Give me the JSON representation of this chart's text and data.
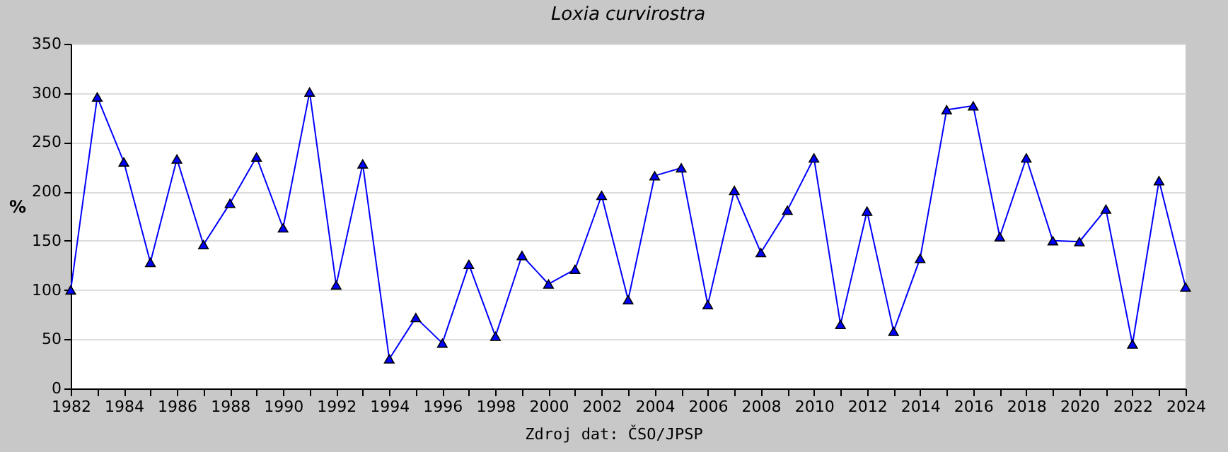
{
  "chart_data": {
    "type": "line",
    "title": "Loxia curvirostra",
    "ylabel": "%",
    "annotations": [
      "Zdroj dat: ČSO/JPSP"
    ],
    "x": [
      1982,
      1983,
      1984,
      1985,
      1986,
      1987,
      1988,
      1989,
      1990,
      1991,
      1992,
      1993,
      1994,
      1995,
      1996,
      1997,
      1998,
      1999,
      2000,
      2001,
      2002,
      2003,
      2004,
      2005,
      2006,
      2007,
      2008,
      2009,
      2010,
      2011,
      2012,
      2013,
      2014,
      2015,
      2016,
      2017,
      2018,
      2019,
      2020,
      2021,
      2022,
      2023,
      2024
    ],
    "series": [
      {
        "color": "#0000ff",
        "values": [
          100,
          296,
          230,
          128,
          233,
          146,
          188,
          235,
          163,
          301,
          105,
          228,
          30,
          72,
          46,
          126,
          53,
          135,
          106,
          121,
          196,
          90,
          216,
          224,
          85,
          201,
          138,
          181,
          234,
          65,
          180,
          58,
          132,
          283,
          287,
          154,
          234,
          150,
          149,
          182,
          45,
          211,
          103
        ]
      }
    ],
    "xlim": [
      1982,
      2024
    ],
    "xticks": [
      1982,
      {
        "value": 1983,
        "label": null
      },
      1984,
      {
        "value": 1985,
        "label": null
      },
      1986,
      {
        "value": 1987,
        "label": null
      },
      1988,
      {
        "value": 1989,
        "label": null
      },
      1990,
      {
        "value": 1991,
        "label": null
      },
      1992,
      {
        "value": 1993,
        "label": null
      },
      1994,
      {
        "value": 1995,
        "label": null
      },
      1996,
      {
        "value": 1997,
        "label": null
      },
      1998,
      {
        "value": 1999,
        "label": null
      },
      2000,
      {
        "value": 2001,
        "label": null
      },
      2002,
      {
        "value": 2003,
        "label": null
      },
      2004,
      {
        "value": 2005,
        "label": null
      },
      2006,
      {
        "value": 2007,
        "label": null
      },
      2008,
      {
        "value": 2009,
        "label": null
      },
      2010,
      {
        "value": 2011,
        "label": null
      },
      2012,
      {
        "value": 2013,
        "label": null
      },
      2014,
      {
        "value": 2015,
        "label": null
      },
      2016,
      {
        "value": 2017,
        "label": null
      },
      2018,
      {
        "value": 2019,
        "label": null
      },
      2020,
      {
        "value": 2021,
        "label": null
      },
      2022,
      {
        "value": 2023,
        "label": null
      },
      2024
    ],
    "ylim": [
      0,
      350
    ],
    "yticks": [
      0,
      50,
      100,
      150,
      200,
      250,
      300,
      350
    ],
    "grid": "y",
    "marker": "triangle",
    "line_style": "solid"
  }
}
